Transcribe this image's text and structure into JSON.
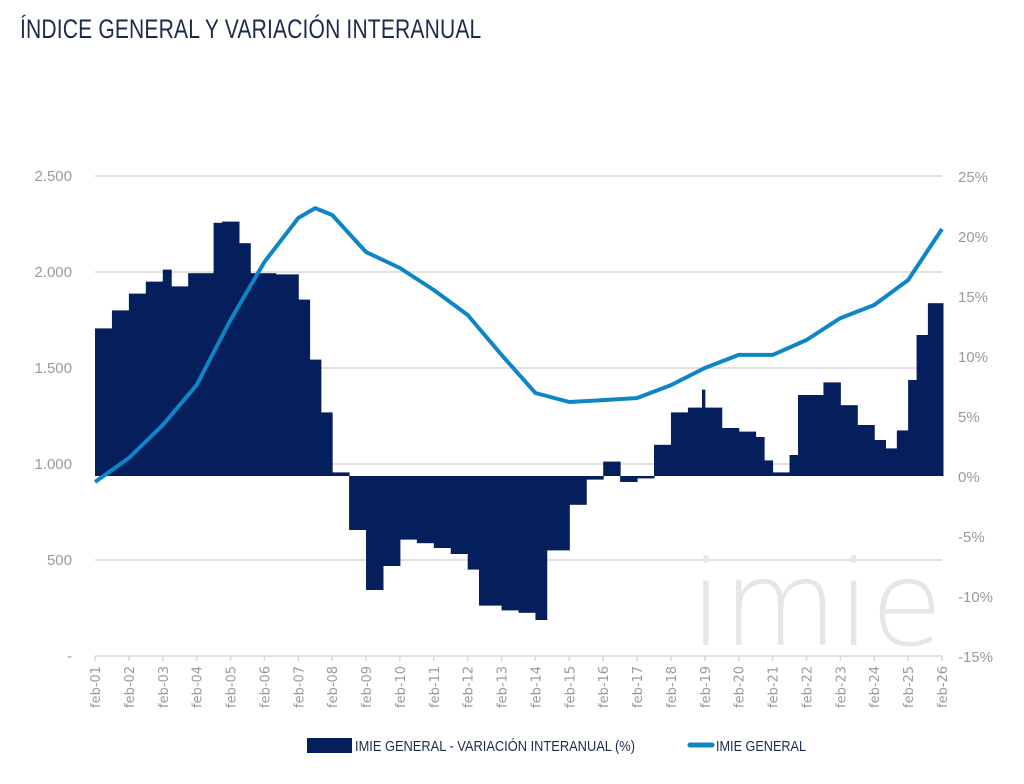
{
  "title": "ÍNDICE GENERAL Y VARIACIÓN INTERANUAL",
  "watermark": "imie",
  "colors": {
    "bars": "#041f5c",
    "line": "#0e86c6",
    "grid": "#d9d9d9",
    "ticks": "#9a9a9a"
  },
  "chart_data": {
    "type": "bar+line",
    "title": "ÍNDICE GENERAL Y VARIACIÓN INTERANUAL",
    "grid": true,
    "legend_placement": "bottom",
    "x_tick_labels": [
      "feb-01",
      "feb-02",
      "feb-03",
      "feb-04",
      "feb-05",
      "feb-06",
      "feb-07",
      "feb-08",
      "feb-09",
      "feb-10",
      "feb-11",
      "feb-12",
      "feb-13",
      "feb-14",
      "feb-15",
      "feb-16",
      "feb-17",
      "feb-18",
      "feb-19",
      "feb-20",
      "feb-21",
      "feb-22",
      "feb-23",
      "feb-24",
      "feb-25",
      "feb-26"
    ],
    "y_left": {
      "ticks": [
        "2.500",
        "2.000",
        "1.500",
        "1.000",
        "500",
        "-"
      ],
      "range": [
        0,
        2500
      ]
    },
    "y_right": {
      "ticks": [
        "25%",
        "20%",
        "15%",
        "10%",
        "5%",
        "0%",
        "-5%",
        "-10%",
        "-15%"
      ],
      "range": [
        -15,
        25
      ]
    },
    "series": [
      {
        "name": "IMIE GENERAL - VARIACIÓN INTERANUAL (%)",
        "type": "bar",
        "axis": "right",
        "points": [
          [
            "2001-02",
            12.3
          ],
          [
            "2001-08",
            13.8
          ],
          [
            "2002-02",
            15.2
          ],
          [
            "2002-08",
            16.2
          ],
          [
            "2003-02",
            17.2
          ],
          [
            "2003-05",
            15.8
          ],
          [
            "2003-11",
            16.9
          ],
          [
            "2004-08",
            21.1
          ],
          [
            "2004-11",
            21.2
          ],
          [
            "2005-05",
            19.4
          ],
          [
            "2005-09",
            16.9
          ],
          [
            "2006-06",
            16.8
          ],
          [
            "2007-02",
            14.7
          ],
          [
            "2007-06",
            9.7
          ],
          [
            "2007-10",
            5.3
          ],
          [
            "2008-02",
            0.3
          ],
          [
            "2008-08",
            -4.5
          ],
          [
            "2009-02",
            -9.5
          ],
          [
            "2009-08",
            -7.5
          ],
          [
            "2010-02",
            -5.3
          ],
          [
            "2010-08",
            -5.6
          ],
          [
            "2011-02",
            -6.0
          ],
          [
            "2011-08",
            -6.5
          ],
          [
            "2012-02",
            -7.8
          ],
          [
            "2012-06",
            -10.8
          ],
          [
            "2013-02",
            -11.2
          ],
          [
            "2013-08",
            -11.4
          ],
          [
            "2014-02",
            -12.0
          ],
          [
            "2014-06",
            -6.2
          ],
          [
            "2015-02",
            -2.4
          ],
          [
            "2015-08",
            -0.3
          ],
          [
            "2016-02",
            1.2
          ],
          [
            "2016-08",
            -0.5
          ],
          [
            "2017-02",
            -0.2
          ],
          [
            "2017-08",
            2.6
          ],
          [
            "2018-02",
            5.3
          ],
          [
            "2018-08",
            5.7
          ],
          [
            "2019-01",
            7.2
          ],
          [
            "2019-02",
            5.7
          ],
          [
            "2019-08",
            4.0
          ],
          [
            "2020-02",
            3.7
          ],
          [
            "2020-08",
            3.25
          ],
          [
            "2020-11",
            1.3
          ],
          [
            "2021-02",
            0.3
          ],
          [
            "2021-08",
            1.75
          ],
          [
            "2021-11",
            6.75
          ],
          [
            "2022-02",
            6.75
          ],
          [
            "2022-08",
            7.8
          ],
          [
            "2023-02",
            5.9
          ],
          [
            "2023-08",
            4.25
          ],
          [
            "2024-02",
            3.0
          ],
          [
            "2024-06",
            2.3
          ],
          [
            "2024-10",
            3.8
          ],
          [
            "2025-02",
            8.0
          ],
          [
            "2025-05",
            11.75
          ],
          [
            "2025-09",
            14.4
          ],
          [
            "2026-02",
            14.4
          ]
        ]
      },
      {
        "name": "IMIE GENERAL",
        "type": "line",
        "axis": "left",
        "points": [
          [
            "2001-02",
            906
          ],
          [
            "2002-02",
            1031
          ],
          [
            "2003-02",
            1203
          ],
          [
            "2004-02",
            1411
          ],
          [
            "2005-02",
            1750
          ],
          [
            "2006-02",
            2052
          ],
          [
            "2007-02",
            2281
          ],
          [
            "2007-08",
            2333
          ],
          [
            "2008-02",
            2297
          ],
          [
            "2009-02",
            2104
          ],
          [
            "2010-02",
            2021
          ],
          [
            "2011-02",
            1906
          ],
          [
            "2012-02",
            1776
          ],
          [
            "2013-02",
            1568
          ],
          [
            "2014-02",
            1370
          ],
          [
            "2015-02",
            1323
          ],
          [
            "2016-02",
            1333
          ],
          [
            "2017-02",
            1344
          ],
          [
            "2018-02",
            1411
          ],
          [
            "2019-02",
            1500
          ],
          [
            "2020-02",
            1568
          ],
          [
            "2021-02",
            1568
          ],
          [
            "2022-02",
            1646
          ],
          [
            "2023-02",
            1760
          ],
          [
            "2024-02",
            1828
          ],
          [
            "2025-02",
            1958
          ],
          [
            "2026-02",
            2224
          ]
        ]
      }
    ]
  },
  "legend": [
    {
      "label": "IMIE GENERAL - VARIACIÓN INTERANUAL (%)"
    },
    {
      "label": "IMIE GENERAL"
    }
  ]
}
